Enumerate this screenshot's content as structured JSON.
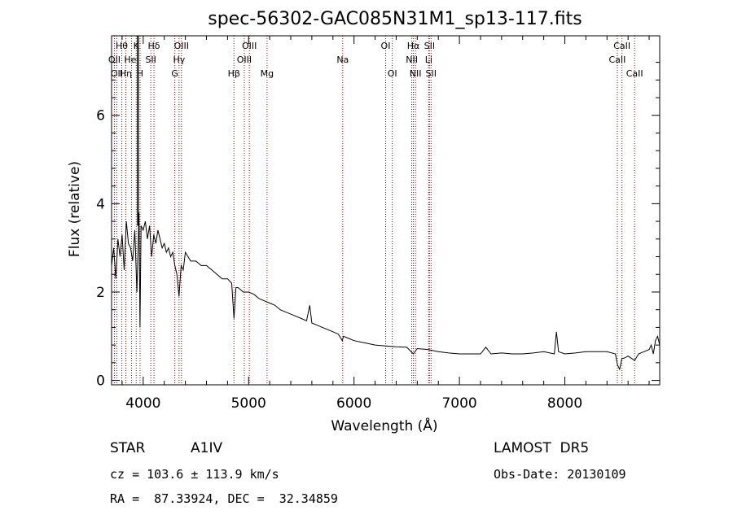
{
  "chart_data": {
    "type": "line",
    "title": "spec-56302-GAC085N31M1_sp13-117.fits",
    "xlabel": "Wavelength (Å)",
    "ylabel": "Flux (relative)",
    "xlim": [
      3700,
      8900
    ],
    "ylim": [
      -0.1,
      7.8
    ],
    "x_ticks": [
      4000,
      5000,
      6000,
      7000,
      8000
    ],
    "y_ticks": [
      0,
      2,
      4,
      6
    ],
    "grid": false,
    "series": [
      {
        "x": [
          3700,
          3720,
          3740,
          3760,
          3780,
          3800,
          3820,
          3840,
          3860,
          3880,
          3900,
          3920,
          3940,
          3960,
          3970,
          3980,
          4000,
          4020,
          4040,
          4060,
          4080,
          4100,
          4120,
          4140,
          4160,
          4180,
          4200,
          4220,
          4240,
          4260,
          4280,
          4300,
          4320,
          4340,
          4360,
          4380,
          4400,
          4450,
          4500,
          4550,
          4600,
          4650,
          4700,
          4750,
          4800,
          4840,
          4861,
          4880,
          4900,
          4950,
          5000,
          5050,
          5100,
          5150,
          5200,
          5250,
          5300,
          5350,
          5400,
          5450,
          5500,
          5550,
          5580,
          5600,
          5650,
          5700,
          5750,
          5800,
          5850,
          5890,
          5900,
          5950,
          6000,
          6100,
          6200,
          6300,
          6400,
          6500,
          6563,
          6600,
          6700,
          6800,
          6900,
          7000,
          7100,
          7200,
          7250,
          7300,
          7400,
          7500,
          7600,
          7700,
          7800,
          7900,
          7920,
          7940,
          8000,
          8100,
          8200,
          8300,
          8400,
          8480,
          8500,
          8520,
          8542,
          8560,
          8600,
          8662,
          8700,
          8750,
          8800,
          8820,
          8840,
          8860,
          8880,
          8900
        ],
        "y": [
          2.6,
          3.0,
          2.3,
          3.2,
          2.8,
          3.3,
          2.5,
          3.6,
          3.1,
          3.0,
          2.7,
          3.4,
          2.0,
          3.8,
          1.2,
          3.5,
          3.4,
          3.6,
          3.2,
          3.5,
          2.8,
          3.3,
          3.1,
          3.4,
          3.2,
          3.0,
          3.1,
          2.9,
          3.0,
          2.8,
          2.9,
          2.6,
          2.4,
          1.9,
          2.6,
          2.5,
          2.9,
          2.7,
          2.7,
          2.6,
          2.6,
          2.5,
          2.4,
          2.3,
          2.3,
          2.2,
          1.4,
          2.1,
          2.1,
          2.0,
          2.0,
          1.95,
          1.85,
          1.8,
          1.75,
          1.7,
          1.6,
          1.55,
          1.5,
          1.45,
          1.4,
          1.35,
          1.7,
          1.3,
          1.25,
          1.2,
          1.15,
          1.1,
          1.05,
          0.9,
          1.0,
          0.95,
          0.9,
          0.85,
          0.8,
          0.78,
          0.76,
          0.75,
          0.6,
          0.72,
          0.7,
          0.65,
          0.62,
          0.6,
          0.6,
          0.6,
          0.75,
          0.6,
          0.62,
          0.6,
          0.6,
          0.62,
          0.65,
          0.6,
          1.1,
          0.65,
          0.6,
          0.62,
          0.65,
          0.65,
          0.65,
          0.6,
          0.35,
          0.25,
          0.5,
          0.5,
          0.55,
          0.45,
          0.6,
          0.65,
          0.7,
          0.8,
          0.6,
          0.9,
          1.0,
          0.8
        ]
      }
    ],
    "lines": [
      {
        "wave": 3727,
        "label": "OII",
        "row": 2
      },
      {
        "wave": 3750,
        "label": "OII",
        "row": 3
      },
      {
        "wave": 3797,
        "label": "Hθ",
        "row": 1
      },
      {
        "wave": 3835,
        "label": "Hη",
        "row": 3
      },
      {
        "wave": 3889,
        "label": "HeI",
        "row": 2
      },
      {
        "wave": 3934,
        "label": "K",
        "row": 1
      },
      {
        "wave": 3970,
        "label": "H",
        "row": 3
      },
      {
        "wave": 4072,
        "label": "SII",
        "row": 2
      },
      {
        "wave": 4102,
        "label": "Hδ",
        "row": 1
      },
      {
        "wave": 4300,
        "label": "G",
        "row": 3
      },
      {
        "wave": 4340,
        "label": "Hγ",
        "row": 2
      },
      {
        "wave": 4363,
        "label": "OIII",
        "row": 1
      },
      {
        "wave": 4861,
        "label": "Hβ",
        "row": 3
      },
      {
        "wave": 4959,
        "label": "OIII",
        "row": 2
      },
      {
        "wave": 5007,
        "label": "OIII",
        "row": 1
      },
      {
        "wave": 5175,
        "label": "Mg",
        "row": 3
      },
      {
        "wave": 5893,
        "label": "Na",
        "row": 2
      },
      {
        "wave": 6300,
        "label": "OI",
        "row": 1
      },
      {
        "wave": 6363,
        "label": "OI",
        "row": 3
      },
      {
        "wave": 6548,
        "label": "NII",
        "row": 2
      },
      {
        "wave": 6563,
        "label": "Hα",
        "row": 1
      },
      {
        "wave": 6583,
        "label": "NII",
        "row": 3
      },
      {
        "wave": 6708,
        "label": "Li",
        "row": 2
      },
      {
        "wave": 6716,
        "label": "SII",
        "row": 1
      },
      {
        "wave": 6731,
        "label": "SII",
        "row": 3
      },
      {
        "wave": 8498,
        "label": "CaII",
        "row": 2
      },
      {
        "wave": 8542,
        "label": "CaII",
        "row": 1
      },
      {
        "wave": 8662,
        "label": "CaII",
        "row": 3
      }
    ]
  },
  "footer": {
    "object_class": "STAR",
    "subclass": "A1IV",
    "survey": "LAMOST  DR5",
    "cz": "cz = 103.6 ± 113.9 km/s",
    "obs_date": "Obs-Date: 20130109",
    "coords": "RA =  87.33924, DEC =  32.34859"
  },
  "colors": {
    "spectrum": "#000000",
    "line_marker": "#a00000",
    "axes": "#000000"
  }
}
